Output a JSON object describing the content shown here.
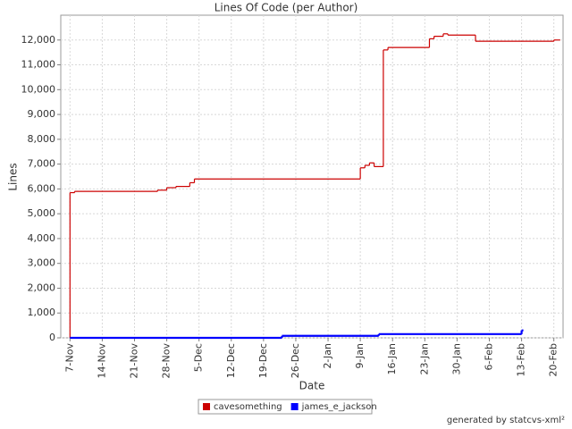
{
  "chart_data": {
    "type": "step-line",
    "title": "Lines Of Code (per Author)",
    "x_label": "Date",
    "y_label": "Lines",
    "footer": "generated by statcvs-xml²",
    "xlim": [
      "5-Nov",
      "22-Feb"
    ],
    "xticks": [
      "7-Nov",
      "14-Nov",
      "21-Nov",
      "28-Nov",
      "5-Dec",
      "12-Dec",
      "19-Dec",
      "26-Dec",
      "2-Jan",
      "9-Jan",
      "16-Jan",
      "23-Jan",
      "30-Jan",
      "6-Feb",
      "13-Feb",
      "20-Feb"
    ],
    "ylim": [
      0,
      13000
    ],
    "yticks": [
      0,
      {
        "value": 1000,
        "label": "1,000"
      },
      {
        "value": 2000,
        "label": "2,000"
      },
      {
        "value": 3000,
        "label": "3,000"
      },
      {
        "value": 4000,
        "label": "4,000"
      },
      {
        "value": 5000,
        "label": "5,000"
      },
      {
        "value": 6000,
        "label": "6,000"
      },
      {
        "value": 7000,
        "label": "7,000"
      },
      {
        "value": 8000,
        "label": "8,000"
      },
      {
        "value": 9000,
        "label": "9,000"
      },
      {
        "value": 10000,
        "label": "10,000"
      },
      {
        "value": 11000,
        "label": "11,000"
      },
      {
        "value": 12000,
        "label": "12,000"
      }
    ],
    "grid": true,
    "legend": "bottom",
    "series": [
      {
        "name": "cavesomething",
        "color": "#cc0000",
        "x": [
          "7-Nov",
          "7-Nov",
          "8-Nov",
          "26-Nov",
          "28-Nov",
          "30-Nov",
          "3-Dec",
          "4-Dec",
          "9-Jan",
          "10-Jan",
          "11-Jan",
          "12-Jan",
          "14-Jan",
          "15-Jan",
          "24-Jan",
          "25-Jan",
          "27-Jan",
          "28-Jan",
          "3-Feb",
          "20-Feb",
          "21-Feb"
        ],
        "values": [
          0,
          5850,
          5900,
          5950,
          6050,
          6100,
          6250,
          6400,
          6850,
          6950,
          7050,
          6900,
          11600,
          11700,
          12050,
          12150,
          12250,
          12200,
          11950,
          12000,
          12000
        ]
      },
      {
        "name": "james_e_jackson",
        "color": "#0000ff",
        "x": [
          "7-Nov",
          "23-Dec",
          "13-Jan",
          "13-Feb"
        ],
        "values": [
          0,
          80,
          150,
          300
        ]
      }
    ]
  }
}
